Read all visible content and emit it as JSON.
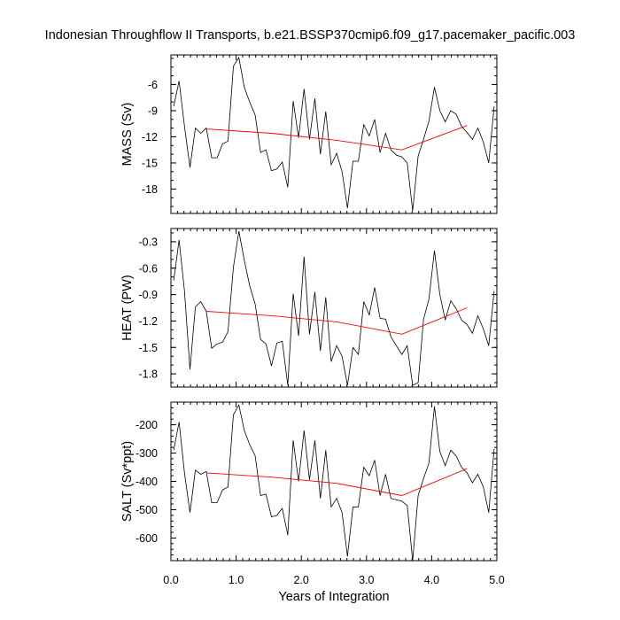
{
  "chart_data": {
    "type": "line",
    "title": "Indonesian Throughflow II Transports, b.e21.BSSP370cmip6.f09_g17.pacemaker_pacific.003",
    "xlabel": "Years of Integration",
    "xlim": [
      0,
      5
    ],
    "xticks": [
      "0.0",
      "1.0",
      "2.0",
      "3.0",
      "4.0",
      "5.0"
    ],
    "xtick_values": [
      0,
      1,
      2,
      3,
      4,
      5
    ],
    "colors": {
      "series": "#000000",
      "trend": "#ff0000"
    },
    "x": [
      0.042,
      0.125,
      0.208,
      0.292,
      0.375,
      0.458,
      0.542,
      0.625,
      0.708,
      0.792,
      0.875,
      0.958,
      1.042,
      1.125,
      1.208,
      1.292,
      1.375,
      1.458,
      1.542,
      1.625,
      1.708,
      1.792,
      1.875,
      1.958,
      2.042,
      2.125,
      2.208,
      2.292,
      2.375,
      2.458,
      2.542,
      2.625,
      2.708,
      2.792,
      2.875,
      2.958,
      3.042,
      3.125,
      3.208,
      3.292,
      3.375,
      3.458,
      3.542,
      3.625,
      3.708,
      3.792,
      3.875,
      3.958,
      4.042,
      4.125,
      4.208,
      4.292,
      4.375,
      4.458,
      4.542,
      4.625,
      4.708,
      4.792,
      4.875,
      4.958
    ],
    "trend_x": [
      0.542,
      1.542,
      2.542,
      3.542,
      4.542
    ],
    "panels": [
      {
        "name": "mass",
        "ylabel": "MASS (Sv)",
        "ylim": [
          -20.8,
          -2.6
        ],
        "yticks": [
          "-6",
          "-9",
          "-12",
          "-15",
          "-18"
        ],
        "ytick_values": [
          -6,
          -9,
          -12,
          -15,
          -18
        ],
        "minor_step": 1,
        "values": [
          -8.5,
          -5.6,
          -10.8,
          -15.5,
          -11.0,
          -11.6,
          -11.0,
          -14.4,
          -14.4,
          -12.8,
          -12.5,
          -3.9,
          -2.9,
          -6.3,
          -8.0,
          -9.5,
          -13.8,
          -13.5,
          -15.9,
          -15.7,
          -14.9,
          -17.8,
          -7.9,
          -12.1,
          -6.5,
          -12.3,
          -7.6,
          -14.0,
          -9.1,
          -15.2,
          -13.9,
          -16.0,
          -20.2,
          -14.8,
          -14.8,
          -10.6,
          -11.9,
          -10.0,
          -13.8,
          -11.6,
          -13.5,
          -14.1,
          -14.3,
          -15.0,
          -20.5,
          -14.2,
          -12.3,
          -10.2,
          -6.3,
          -9.0,
          -10.3,
          -9.0,
          -9.4,
          -10.8,
          -11.5,
          -12.3,
          -11.0,
          -12.6,
          -15.0,
          -8.5
        ],
        "trend": [
          -11.1,
          -11.6,
          -12.4,
          -13.5,
          -10.7
        ]
      },
      {
        "name": "heat",
        "ylabel": "HEAT (PW)",
        "ylim": [
          -1.95,
          -0.15
        ],
        "yticks": [
          "-0.3",
          "-0.6",
          "-0.9",
          "-1.2",
          "-1.5",
          "-1.8"
        ],
        "ytick_values": [
          -0.3,
          -0.6,
          -0.9,
          -1.2,
          -1.5,
          -1.8
        ],
        "minor_step": 0.1,
        "values": [
          -0.74,
          -0.28,
          -0.86,
          -1.75,
          -1.04,
          -0.98,
          -1.09,
          -1.51,
          -1.46,
          -1.44,
          -1.32,
          -0.59,
          -0.18,
          -0.51,
          -0.8,
          -1.01,
          -1.41,
          -1.46,
          -1.71,
          -1.45,
          -1.43,
          -1.93,
          -0.89,
          -1.37,
          -0.47,
          -1.35,
          -0.87,
          -1.54,
          -0.93,
          -1.66,
          -1.48,
          -1.6,
          -1.93,
          -1.5,
          -1.58,
          -0.98,
          -1.13,
          -0.82,
          -1.17,
          -1.18,
          -1.38,
          -1.48,
          -1.58,
          -1.48,
          -1.93,
          -1.9,
          -1.18,
          -0.95,
          -0.4,
          -0.9,
          -1.19,
          -0.97,
          -1.06,
          -1.19,
          -1.24,
          -1.34,
          -1.14,
          -1.29,
          -1.48,
          -0.86
        ],
        "trend": [
          -1.09,
          -1.14,
          -1.21,
          -1.35,
          -1.05
        ]
      },
      {
        "name": "salt",
        "ylabel": "SALT (Sv*ppt)",
        "ylim": [
          -680,
          -120
        ],
        "yticks": [
          "-200",
          "-300",
          "-400",
          "-500",
          "-600"
        ],
        "ytick_values": [
          -200,
          -300,
          -400,
          -500,
          -600
        ],
        "minor_step": 20,
        "values": [
          -290,
          -190,
          -370,
          -510,
          -360,
          -375,
          -365,
          -475,
          -475,
          -430,
          -420,
          -165,
          -130,
          -220,
          -270,
          -310,
          -450,
          -445,
          -525,
          -520,
          -495,
          -590,
          -255,
          -400,
          -220,
          -395,
          -255,
          -460,
          -290,
          -490,
          -460,
          -510,
          -665,
          -490,
          -490,
          -350,
          -380,
          -325,
          -450,
          -375,
          -460,
          -465,
          -470,
          -485,
          -680,
          -450,
          -390,
          -335,
          -135,
          -295,
          -345,
          -290,
          -310,
          -350,
          -370,
          -405,
          -375,
          -420,
          -510,
          -285
        ],
        "trend": [
          -370,
          -385,
          -407,
          -450,
          -355
        ]
      }
    ]
  }
}
